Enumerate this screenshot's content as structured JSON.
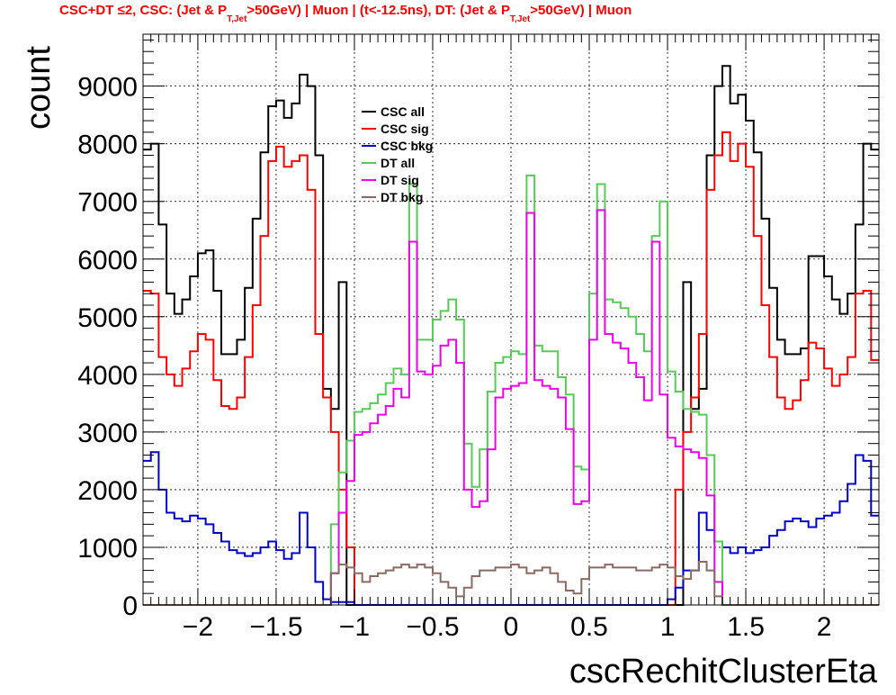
{
  "chart_data": {
    "type": "line",
    "title": {
      "part1": "CSC+DT ≤2, CSC: (Jet & P",
      "sub1": "T,Jet",
      "part2": ">50GeV) | Muon | (t<-12.5ns), DT: (Jet & P",
      "sub2": "T,Jet",
      "part3": ">50GeV) | Muon"
    },
    "xlabel": "cscRechitClusterEta",
    "ylabel": "count",
    "xlim": [
      -2.35,
      2.35
    ],
    "ylim": [
      0,
      9900
    ],
    "grid": true,
    "legend_position": "top-center",
    "x_ticks": [
      -2,
      -1.5,
      -1,
      -0.5,
      0,
      0.5,
      1,
      1.5,
      2
    ],
    "x_tick_labels": [
      "−2",
      "−1.5",
      "−1",
      "−0.5",
      "0",
      "0.5",
      "1",
      "1.5",
      "2"
    ],
    "y_ticks": [
      0,
      1000,
      2000,
      3000,
      4000,
      5000,
      6000,
      7000,
      8000,
      9000
    ],
    "y_tick_labels": [
      "0",
      "1000",
      "2000",
      "3000",
      "4000",
      "5000",
      "6000",
      "7000",
      "8000",
      "9000"
    ],
    "x_start": -2.35,
    "bin_width": 0.05,
    "series": [
      {
        "name": "CSC all",
        "color": "#000000",
        "values": [
          7900,
          8000,
          6600,
          5400,
          5050,
          5300,
          5700,
          6100,
          6150,
          5450,
          4350,
          4350,
          4600,
          5500,
          6700,
          7850,
          8650,
          8750,
          8450,
          8700,
          9200,
          9000,
          7800,
          3750,
          3400,
          5600,
          0,
          0,
          0,
          0,
          0,
          0,
          0,
          0,
          0,
          0,
          0,
          0,
          0,
          0,
          0,
          0,
          0,
          0,
          0,
          0,
          0,
          0,
          0,
          0,
          0,
          0,
          0,
          0,
          0,
          0,
          0,
          0,
          0,
          0,
          0,
          0,
          0,
          0,
          0,
          0,
          0,
          0,
          0,
          5600,
          3400,
          3750,
          7800,
          9000,
          9350,
          8700,
          8850,
          8400,
          7850,
          6700,
          5500,
          4600,
          4350,
          4350,
          4450,
          6050,
          6050,
          5700,
          5300,
          5050,
          5400,
          6600,
          8000,
          7900
        ]
      },
      {
        "name": "CSC sig",
        "color": "#ff0000",
        "values": [
          5450,
          5400,
          4300,
          4000,
          3800,
          4100,
          4400,
          4700,
          4600,
          3900,
          3450,
          3400,
          3600,
          4300,
          5200,
          6400,
          7700,
          7950,
          7600,
          7700,
          7800,
          7200,
          4700,
          3600,
          3000,
          2000,
          1000,
          0,
          0,
          0,
          0,
          0,
          0,
          0,
          0,
          0,
          0,
          0,
          0,
          0,
          0,
          0,
          0,
          0,
          0,
          0,
          0,
          0,
          0,
          0,
          0,
          0,
          0,
          0,
          0,
          0,
          0,
          0,
          0,
          0,
          0,
          0,
          0,
          0,
          0,
          0,
          0,
          0,
          2000,
          3000,
          3600,
          4700,
          7200,
          7800,
          8200,
          7700,
          8000,
          7600,
          6400,
          5200,
          4300,
          3600,
          3400,
          3550,
          3900,
          4550,
          4450,
          4100,
          3800,
          4000,
          4300,
          5400,
          5450,
          4250
        ]
      },
      {
        "name": "CSC bkg",
        "color": "#0000cc",
        "values": [
          2500,
          2650,
          2000,
          1600,
          1500,
          1450,
          1550,
          1500,
          1400,
          1250,
          1100,
          950,
          900,
          850,
          900,
          1000,
          1100,
          950,
          800,
          900,
          1600,
          1000,
          400,
          100,
          50,
          50,
          50,
          0,
          0,
          0,
          0,
          0,
          0,
          0,
          0,
          0,
          0,
          0,
          0,
          0,
          0,
          0,
          0,
          0,
          0,
          0,
          0,
          0,
          0,
          0,
          0,
          0,
          0,
          0,
          0,
          0,
          0,
          0,
          0,
          0,
          0,
          0,
          0,
          0,
          0,
          0,
          0,
          100,
          300,
          600,
          600,
          1600,
          1300,
          1100,
          1000,
          900,
          1000,
          900,
          950,
          1000,
          1200,
          1300,
          1450,
          1500,
          1450,
          1350,
          1500,
          1550,
          1600,
          1800,
          2100,
          2600,
          2500,
          1550
        ]
      },
      {
        "name": "DT all",
        "color": "#55cc55",
        "values": [
          0,
          0,
          0,
          0,
          0,
          0,
          0,
          0,
          0,
          0,
          0,
          0,
          0,
          0,
          0,
          0,
          0,
          0,
          0,
          0,
          0,
          0,
          0,
          0,
          1400,
          2300,
          2850,
          3350,
          3400,
          3500,
          3650,
          3850,
          4100,
          4000,
          7300,
          4600,
          4600,
          4950,
          5100,
          5300,
          4950,
          2800,
          2050,
          2700,
          3700,
          4200,
          4300,
          4400,
          4350,
          7450,
          4500,
          4400,
          4400,
          3950,
          3650,
          2400,
          2350,
          5400,
          7300,
          5300,
          5250,
          5150,
          5000,
          4700,
          4400,
          6400,
          7000,
          4050,
          3700,
          3400,
          3350,
          3300,
          2600,
          1100,
          0,
          0,
          0,
          0,
          0,
          0,
          0,
          0,
          0,
          0,
          0,
          0,
          0,
          0,
          0,
          0,
          0,
          0,
          0,
          0
        ]
      },
      {
        "name": "DT sig",
        "color": "#ee00ee",
        "values": [
          0,
          0,
          0,
          0,
          0,
          0,
          0,
          0,
          0,
          0,
          0,
          0,
          0,
          0,
          0,
          0,
          0,
          0,
          0,
          0,
          0,
          0,
          0,
          0,
          550,
          1600,
          2150,
          2950,
          3000,
          3150,
          3300,
          3450,
          3750,
          3600,
          6300,
          4050,
          4000,
          4150,
          4500,
          4600,
          4200,
          2000,
          1700,
          1800,
          2700,
          3600,
          3750,
          3800,
          3850,
          6800,
          3900,
          3800,
          3750,
          3600,
          3050,
          1750,
          1800,
          4600,
          6850,
          4700,
          4550,
          4450,
          4200,
          3950,
          3550,
          6300,
          3650,
          2900,
          2750,
          2700,
          2650,
          2550,
          1900,
          400,
          0,
          0,
          0,
          0,
          0,
          0,
          0,
          0,
          0,
          0,
          0,
          0,
          0,
          0,
          0,
          0,
          0,
          0,
          0,
          0
        ]
      },
      {
        "name": "DT bkg",
        "color": "#8b6b61",
        "values": [
          0,
          0,
          0,
          0,
          0,
          0,
          0,
          0,
          0,
          0,
          0,
          0,
          0,
          0,
          0,
          0,
          0,
          0,
          0,
          0,
          0,
          0,
          0,
          0,
          550,
          700,
          650,
          550,
          400,
          500,
          550,
          600,
          650,
          700,
          650,
          700,
          650,
          550,
          400,
          300,
          150,
          300,
          500,
          600,
          600,
          650,
          650,
          700,
          650,
          550,
          600,
          650,
          550,
          400,
          250,
          200,
          450,
          650,
          650,
          700,
          650,
          650,
          650,
          600,
          600,
          650,
          700,
          650,
          500,
          450,
          600,
          750,
          600,
          150,
          0,
          0,
          0,
          0,
          0,
          0,
          0,
          0,
          0,
          0,
          0,
          0,
          0,
          0,
          0,
          0,
          0,
          0,
          0,
          0
        ]
      }
    ]
  }
}
